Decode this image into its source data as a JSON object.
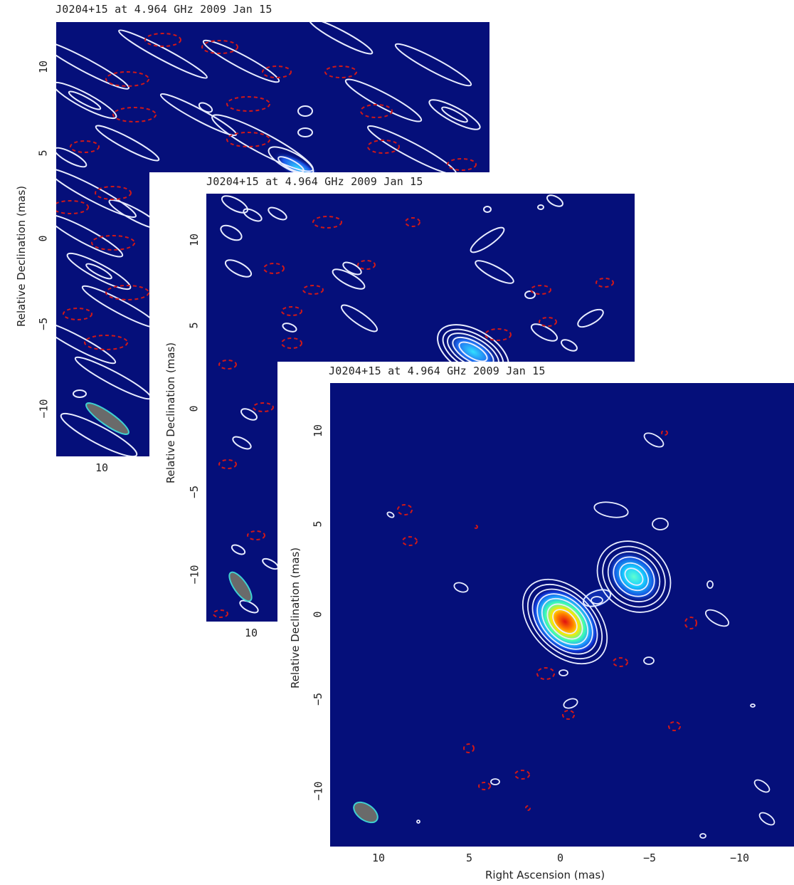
{
  "panels": [
    {
      "title": "J0204+15 at 4.964 GHz 2009 Jan 15",
      "ylabel": "Relative Declination  (mas)",
      "yticks": [
        "10",
        "5",
        "0",
        "−5",
        "−10"
      ],
      "xticks": [
        "10"
      ]
    },
    {
      "title": "J0204+15 at 4.964 GHz 2009 Jan 15",
      "ylabel": "Relative Declination  (mas)",
      "yticks": [
        "10",
        "5",
        "0",
        "−5",
        "−10"
      ],
      "xticks": [
        "10"
      ]
    },
    {
      "title": "J0204+15 at 4.964 GHz 2009 Jan 15",
      "ylabel": "Relative Declination  (mas)",
      "xlabel": "Right Ascension  (mas)",
      "yticks": [
        "10",
        "5",
        "0",
        "−5",
        "−10"
      ],
      "xticks": [
        "10",
        "5",
        "0",
        "−5",
        "−10"
      ]
    }
  ],
  "colors": {
    "background": "#050f7a",
    "positive_contour": "#e8ecff",
    "negative_contour": "#d01818",
    "beam_fill": "#6a6a6a",
    "beam_edge": "#3fd0d0"
  }
}
